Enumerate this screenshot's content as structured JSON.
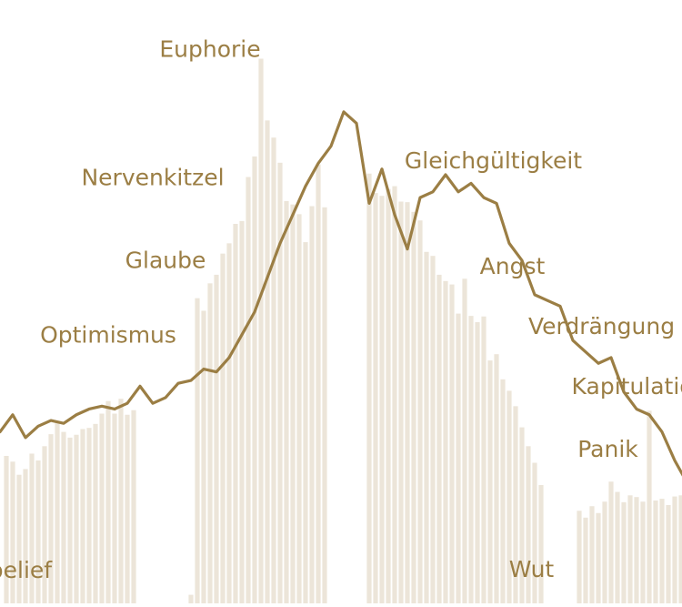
{
  "chart_data": {
    "type": "bar+line",
    "title": "",
    "xlabel": "",
    "ylabel": "",
    "ylim": [
      0,
      100
    ],
    "grid": false,
    "legend": "none",
    "colors": {
      "line": "#9b7e44",
      "bars": "#ece5d9",
      "text": "#9b7e44"
    },
    "bars": {
      "x": [
        1,
        2,
        3,
        4,
        5,
        6,
        7,
        8,
        9,
        10,
        11,
        12,
        13,
        14,
        15,
        16,
        17,
        18,
        19,
        20,
        21,
        22,
        23,
        24,
        25,
        26,
        27,
        28,
        29,
        30,
        31,
        32,
        33,
        34,
        35,
        36,
        37,
        38,
        39,
        40,
        41,
        42,
        43,
        44,
        45,
        46,
        47,
        48,
        49,
        50,
        51,
        52,
        53,
        54,
        55,
        56,
        57,
        58,
        59,
        60,
        61,
        62,
        63,
        64,
        65,
        66,
        67,
        68,
        69,
        70,
        71,
        72,
        73,
        74,
        75,
        76,
        77,
        78,
        79,
        80,
        81,
        82,
        83,
        84,
        85,
        86,
        87,
        88,
        89,
        90,
        91,
        92,
        93,
        94,
        95,
        96,
        97,
        98,
        99,
        100,
        101,
        102,
        103,
        104,
        105,
        106,
        107
      ],
      "values": [
        25.8,
        24.8,
        22.5,
        23.5,
        26.2,
        25.0,
        27.5,
        29.6,
        31.5,
        30.0,
        29.0,
        29.5,
        30.5,
        30.7,
        31.4,
        33.2,
        35.4,
        33.2,
        35.8,
        33.0,
        33.8,
        0,
        0,
        0,
        0,
        0,
        0,
        0,
        0,
        1.5,
        53.4,
        51.2,
        56.0,
        57.5,
        61.2,
        63.0,
        66.4,
        66.9,
        74.6,
        78.2,
        95.3,
        84.5,
        81.5,
        77.1,
        70.4,
        69.8,
        68.1,
        63.2,
        69.5,
        76.8,
        69.3,
        0,
        0,
        0,
        0,
        0,
        0,
        75.2,
        71.8,
        71.3,
        72.5,
        73.0,
        70.3,
        70.2,
        68.5,
        67.0,
        61.5,
        60.8,
        57.5,
        56.4,
        55.8,
        50.7,
        56.8,
        50.3,
        49.2,
        50.2,
        42.5,
        43.6,
        39.2,
        37.2,
        34.5,
        30.8,
        27.5,
        24.6,
        20.7,
        0,
        0,
        0,
        0,
        0,
        16.2,
        15.0,
        17.0,
        15.8,
        17.8,
        21.3,
        19.5,
        17.7,
        18.9,
        18.6,
        17.8,
        33.7,
        18.0,
        18.3,
        17.2,
        18.7,
        18.9
      ]
    },
    "line": {
      "x": [
        0,
        2,
        4,
        6,
        8,
        10,
        12,
        14,
        16,
        18,
        20,
        22,
        24,
        26,
        28,
        30,
        32,
        34,
        36,
        38,
        40,
        42,
        44,
        46,
        48,
        50,
        52,
        54,
        56,
        58,
        60,
        62,
        64,
        66,
        68,
        70,
        72,
        74,
        76,
        78,
        80,
        82,
        84,
        86,
        88,
        90,
        92,
        94,
        96,
        98,
        100,
        102,
        104,
        106,
        108,
        110
      ],
      "values": [
        30,
        33,
        29,
        31,
        32,
        31.5,
        33,
        34,
        34.5,
        34,
        35,
        38,
        35,
        36,
        38.5,
        39,
        41,
        40.5,
        43,
        47,
        51,
        57,
        63,
        68,
        73,
        77,
        80,
        86,
        84,
        70,
        76,
        68,
        62,
        71,
        72,
        75,
        72,
        73.5,
        71,
        70,
        63,
        60,
        54,
        53,
        52,
        46,
        44,
        42,
        43,
        37,
        34,
        33,
        30,
        25,
        21,
        18
      ]
    },
    "phase_labels": [
      {
        "text": "belief",
        "x": 3.2,
        "y": 5.8
      },
      {
        "text": "Optimismus",
        "x": 17.0,
        "y": 47.0
      },
      {
        "text": "Glaube",
        "x": 26.0,
        "y": 60.0
      },
      {
        "text": "Nervenkitzel",
        "x": 24.0,
        "y": 74.5
      },
      {
        "text": "Euphorie",
        "x": 33.0,
        "y": 97.0
      },
      {
        "text": "Gleichgültigkeit",
        "x": 77.5,
        "y": 77.5
      },
      {
        "text": "Angst",
        "x": 80.5,
        "y": 59.0
      },
      {
        "text": "Verdrängung",
        "x": 94.5,
        "y": 48.5
      },
      {
        "text": "Kapitulation",
        "x": 100.5,
        "y": 38.0
      },
      {
        "text": "Panik",
        "x": 95.5,
        "y": 27.0
      },
      {
        "text": "Wut",
        "x": 83.5,
        "y": 6.0
      }
    ]
  }
}
